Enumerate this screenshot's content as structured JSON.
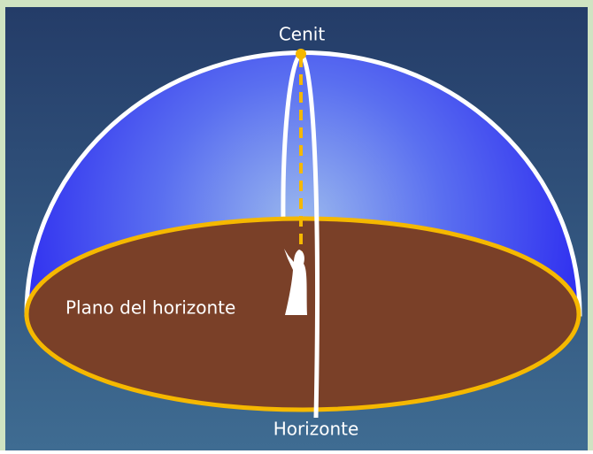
{
  "labels": {
    "zenith": "Cenit",
    "plane": "Plano del horizonte",
    "horizon": "Horizonte"
  }
}
